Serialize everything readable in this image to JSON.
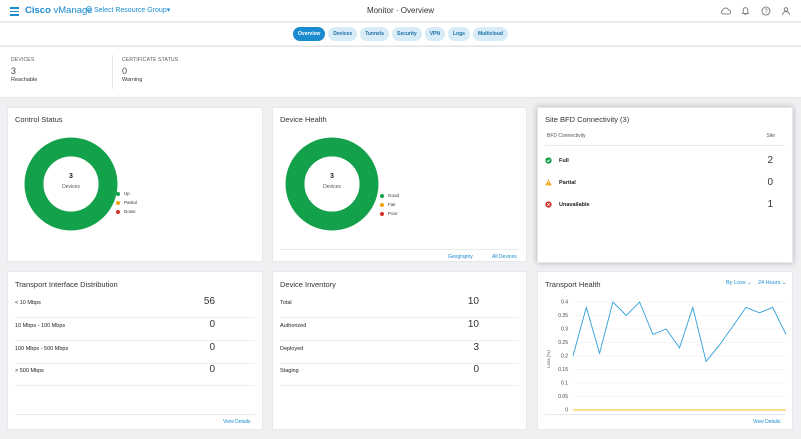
{
  "topbar": {
    "brand_bold": "Cisco",
    "brand_light": " vManage",
    "resource_group": "Select Resource Group▾",
    "title": "Monitor · Overview",
    "icons": [
      "cloud-icon",
      "bell-icon",
      "help-icon",
      "user-icon"
    ]
  },
  "tabs": [
    {
      "label": "Overview",
      "active": true
    },
    {
      "label": "Devices",
      "active": false
    },
    {
      "label": "Tunnels",
      "active": false
    },
    {
      "label": "Security",
      "active": false
    },
    {
      "label": "VPN",
      "active": false
    },
    {
      "label": "Logs",
      "active": false
    },
    {
      "label": "Multicloud",
      "active": false
    }
  ],
  "summary": {
    "devices": {
      "label": "DEVICES",
      "value": "3",
      "sub": "Reachable"
    },
    "certificate": {
      "label": "CERTIFICATE STATUS",
      "value": "0",
      "sub": "Warning"
    }
  },
  "control_status": {
    "title": "Control Status",
    "center_value": "3",
    "center_label": "Devices",
    "legend": [
      {
        "label": "Up",
        "color": "#14a14c"
      },
      {
        "label": "Partial",
        "color": "#f0a30a"
      },
      {
        "label": "Down",
        "color": "#d0342c"
      }
    ],
    "values": {
      "up": 3,
      "partial": 0,
      "down": 0
    }
  },
  "device_health": {
    "title": "Device Health",
    "center_value": "3",
    "center_label": "Devices",
    "legend": [
      {
        "label": "Good",
        "color": "#14a14c"
      },
      {
        "label": "Fair",
        "color": "#f0a30a"
      },
      {
        "label": "Poor",
        "color": "#d0342c"
      }
    ],
    "values": {
      "good": 3,
      "fair": 0,
      "poor": 0
    },
    "links": {
      "geography": "Geography",
      "all_devices": "All Devices"
    }
  },
  "site_bfd": {
    "title": "Site BFD Connectivity (3)",
    "col_left": "BFD Connectivity",
    "col_right": "Site",
    "rows": [
      {
        "label": "Full",
        "value": "2",
        "icon": "check-circle-icon",
        "color": "#14a14c"
      },
      {
        "label": "Partial",
        "value": "0",
        "icon": "warning-triangle-icon",
        "color": "#f0a30a"
      },
      {
        "label": "Unavailable",
        "value": "1",
        "icon": "error-circle-icon",
        "color": "#d0342c"
      }
    ]
  },
  "transport_interface": {
    "title": "Transport Interface Distribution",
    "rows": [
      {
        "label": "< 10 Mbps",
        "value": "56"
      },
      {
        "label": "10 Mbps - 100 Mbps",
        "value": "0"
      },
      {
        "label": "100 Mbps - 500 Mbps",
        "value": "0"
      },
      {
        "label": "> 500 Mbps",
        "value": "0"
      }
    ],
    "link": "View Details"
  },
  "device_inventory": {
    "title": "Device Inventory",
    "rows": [
      {
        "label": "Total",
        "value": "10"
      },
      {
        "label": "Authorized",
        "value": "10"
      },
      {
        "label": "Deployed",
        "value": "3"
      },
      {
        "label": "Staging",
        "value": "0"
      }
    ]
  },
  "transport_health": {
    "title": "Transport Health",
    "by": "By Loss ⌄",
    "range": "24 Hours ⌄",
    "link": "View Details",
    "colors": {
      "series1": "#2f9ed8",
      "series2": "#f0c020"
    }
  },
  "chart_data": {
    "type": "line",
    "title": "Transport Health",
    "xlabel": "",
    "ylabel": "Loss (%)",
    "ylim": [
      0,
      0.4
    ],
    "yticks": [
      "0.4",
      "0.35",
      "0.3",
      "0.25",
      "0.2",
      "0.15",
      "0.1",
      "0.05",
      "0"
    ],
    "series": [
      {
        "values": [
          0.2,
          0.38,
          0.21,
          0.4,
          0.35,
          0.4,
          0.28,
          0.3,
          0.23,
          0.38,
          0.18,
          0.24,
          0.31,
          0.38,
          0.36,
          0.38,
          0.28
        ]
      },
      {
        "values": [
          0,
          0,
          0,
          0,
          0,
          0,
          0,
          0,
          0,
          0,
          0,
          0,
          0,
          0,
          0,
          0,
          0
        ]
      }
    ]
  }
}
